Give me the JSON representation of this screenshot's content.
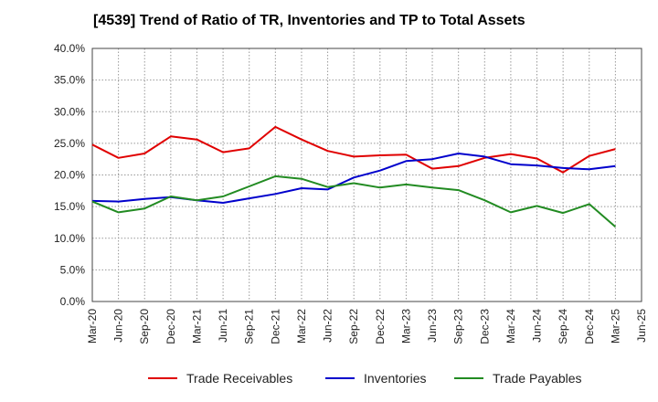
{
  "chart_data": {
    "type": "line",
    "title": "[4539]  Trend of Ratio of TR, Inventories and TP to Total Assets",
    "xlabel": "",
    "ylabel": "",
    "ylim": [
      0,
      40
    ],
    "yticks": [
      "0.0%",
      "5.0%",
      "10.0%",
      "15.0%",
      "20.0%",
      "25.0%",
      "30.0%",
      "35.0%",
      "40.0%"
    ],
    "grid": true,
    "legend_position": "bottom",
    "x_tick_labels": [
      "Mar-20",
      "Jun-20",
      "Sep-20",
      "Dec-20",
      "Mar-21",
      "Jun-21",
      "Sep-21",
      "Dec-21",
      "Mar-22",
      "Jun-22",
      "Sep-22",
      "Dec-22",
      "Mar-23",
      "Jun-23",
      "Sep-23",
      "Dec-23",
      "Mar-24",
      "Jun-24",
      "Sep-24",
      "Dec-24",
      "Mar-25",
      "Jun-25"
    ],
    "x": [
      "Mar-20",
      "Jun-20",
      "Sep-20",
      "Dec-20",
      "Mar-21",
      "Jun-21",
      "Sep-21",
      "Dec-21",
      "Mar-22",
      "Jun-22",
      "Sep-22",
      "Dec-22",
      "Mar-23",
      "Jun-23",
      "Sep-23",
      "Dec-23",
      "Mar-24",
      "Jun-24",
      "Sep-24",
      "Dec-24",
      "Mar-25"
    ],
    "series": [
      {
        "name": "Trade Receivables",
        "color": "#e00000",
        "values": [
          24.8,
          22.7,
          23.4,
          26.1,
          25.6,
          23.6,
          24.2,
          27.6,
          25.6,
          23.8,
          22.9,
          23.1,
          23.2,
          21.0,
          21.4,
          22.7,
          23.3,
          22.6,
          20.4,
          23.0,
          24.1
        ]
      },
      {
        "name": "Inventories",
        "color": "#0000cc",
        "values": [
          15.9,
          15.8,
          16.2,
          16.5,
          16.0,
          15.6,
          16.3,
          17.0,
          17.9,
          17.7,
          19.6,
          20.7,
          22.2,
          22.5,
          23.4,
          22.9,
          21.7,
          21.5,
          21.1,
          20.9,
          21.4
        ]
      },
      {
        "name": "Trade Payables",
        "color": "#228b22",
        "values": [
          15.8,
          14.1,
          14.7,
          16.6,
          16.0,
          16.6,
          18.2,
          19.8,
          19.4,
          18.1,
          18.7,
          18.0,
          18.5,
          18.0,
          17.6,
          16.0,
          14.1,
          15.1,
          14.0,
          15.4,
          11.8
        ]
      }
    ]
  }
}
